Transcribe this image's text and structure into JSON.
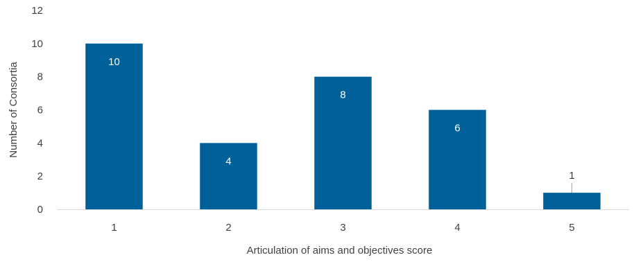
{
  "chart_data": {
    "type": "bar",
    "title": "",
    "xlabel": "Articulation of aims and objectives score",
    "ylabel": "Number of Consortia",
    "categories": [
      "1",
      "2",
      "3",
      "4",
      "5"
    ],
    "values": [
      10,
      4,
      8,
      6,
      1
    ],
    "data_labels": [
      "10",
      "4",
      "8",
      "6",
      "1"
    ],
    "ylim": [
      0,
      12
    ],
    "yticks": [
      0,
      2,
      4,
      6,
      8,
      10,
      12
    ],
    "grid": false,
    "legend": "none",
    "bar_color": "#00609a",
    "inside_label_color": "#ffffff",
    "outside_label_color": "#404040",
    "axis_color": "#d9d9d9"
  }
}
